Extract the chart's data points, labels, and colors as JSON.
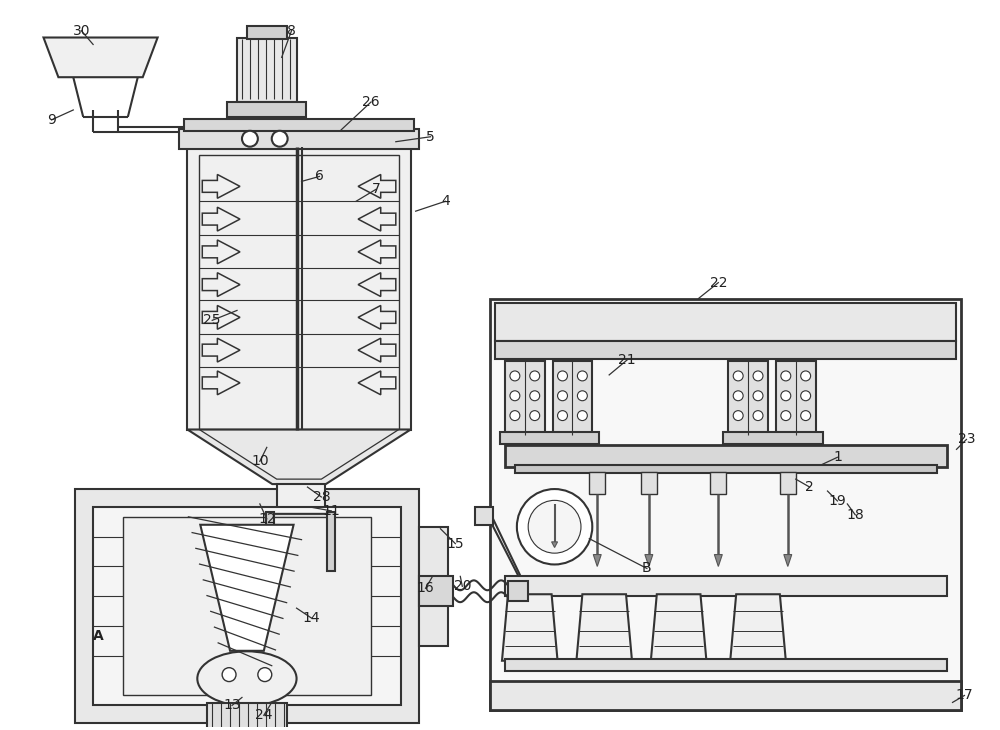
{
  "bg_color": "#ffffff",
  "lc": "#333333",
  "lw": 1.5,
  "fig_width": 10.0,
  "fig_height": 7.3,
  "label_fs": 10,
  "label_color": "#222222"
}
